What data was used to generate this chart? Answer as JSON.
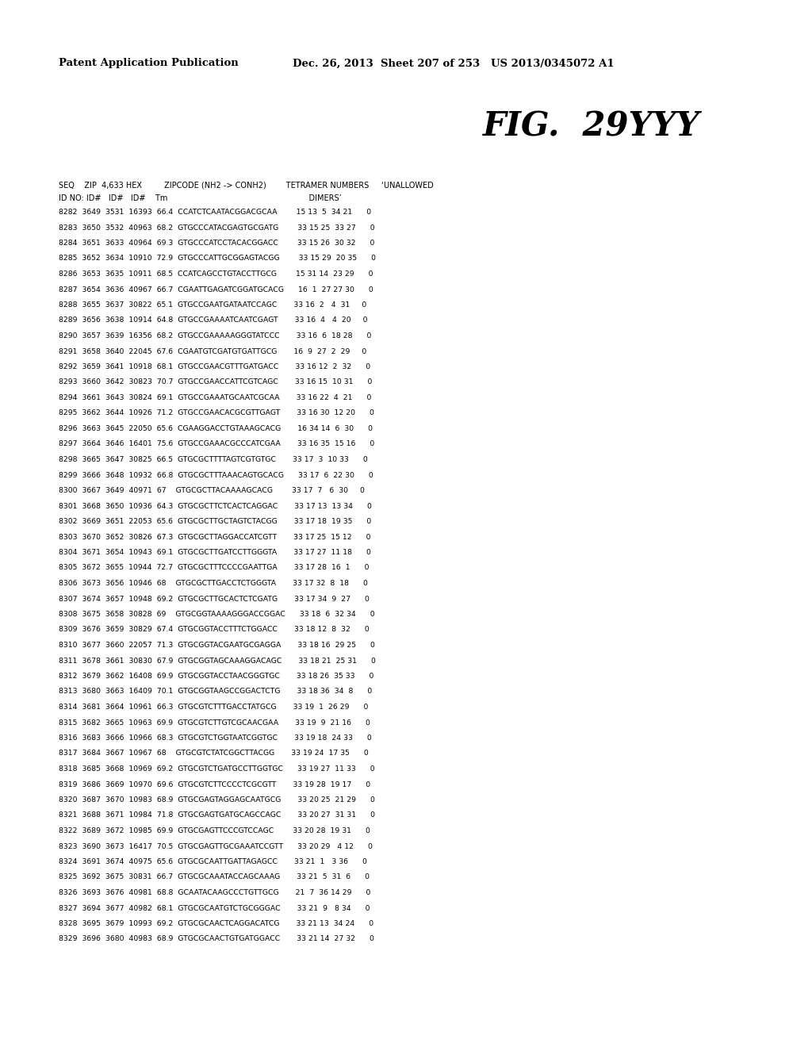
{
  "header_left": "Patent Application Publication",
  "header_right": "Dec. 26, 2013  Sheet 207 of 253   US 2013/0345072 A1",
  "fig_title": "FIG.  29YYY",
  "col_header1": "SEQ    ZIP  4,633 HEX         ZIPCODE (NH2 -> CONH2)        TETRAMER NUMBERS     ‘UNALLOWED",
  "col_header2": "ID NO: ID#   ID#   ID#    Tm                                                         DIMERS’",
  "rows": [
    "8282  3649  3531  16393  66.4  CCATCTCAATACGGACGCAA        15 13  5  34 21      0",
    "8283  3650  3532  40963  68.2  GTGCCCATACGAGTGCGATG        33 15 25  33 27      0",
    "8284  3651  3633  40964  69.3  GTGCCCATCCTACACGGACC        33 15 26  30 32      0",
    "8285  3652  3634  10910  72.9  GTGCCCATTGCGGAGTACGG        33 15 29  20 35      0",
    "8286  3653  3635  10911  68.5  CCATCAGCCTGTACCTTGCG        15 31 14  23 29      0",
    "8287  3654  3636  40967  66.7  CGAATTGAGATCGGATGCACG      16  1  27 27 30      0",
    "8288  3655  3637  30822  65.1  GTGCCGAATGATAATCCAGC       33 16  2   4  31     0",
    "8289  3656  3638  10914  64.8  GTGCCGAAAATCAATCGAGT       33 16  4   4  20     0",
    "8290  3657  3639  16356  68.2  GTGCCGAAAAAGGGTATCCC       33 16  6  18 28      0",
    "8291  3658  3640  22045  67.6  CGAATGTCGATGTGATTGCG       16  9  27  2  29     0",
    "8292  3659  3641  10918  68.1  GTGCCGAACGTTTGATGACC       33 16 12  2  32      0",
    "8293  3660  3642  30823  70.7  GTGCCGAACCATTCGTCAGC       33 16 15  10 31      0",
    "8294  3661  3643  30824  69.1  GTGCCGAAATGCAATCGCAA       33 16 22  4  21      0",
    "8295  3662  3644  10926  71.2  GTGCCGAACACGCGTTGAGT       33 16 30  12 20      0",
    "8296  3663  3645  22050  65.6  CGAAGGACCTGTAAAGCACG       16 34 14  6  30      0",
    "8297  3664  3646  16401  75.6  GTGCCGAAACGCCCATCGAA       33 16 35  15 16      0",
    "8298  3665  3647  30825  66.5  GTGCGCTTTTAGTCGTGTGC       33 17  3  10 33      0",
    "8299  3666  3648  10932  66.8  GTGCGCTTTAAACAGTGCACG      33 17  6  22 30      0",
    "8300  3667  3649  40971  67    GTGCGCTTACAAAAGCACG        33 17  7   6  30     0",
    "8301  3668  3650  10936  64.3  GTGCGCTTCTCACTCAGGAC       33 17 13  13 34      0",
    "8302  3669  3651  22053  65.6  GTGCGCTTGCTAGTCTACGG       33 17 18  19 35      0",
    "8303  3670  3652  30826  67.3  GTGCGCTTAGGACCATCGTT       33 17 25  15 12      0",
    "8304  3671  3654  10943  69.1  GTGCGCTTGATCCTTGGGTA       33 17 27  11 18      0",
    "8305  3672  3655  10944  72.7  GTGCGCTTTCCCCGAATTGA       33 17 28  16  1      0",
    "8306  3673  3656  10946  68    GTGCGCTTGACCTCTGGGTA       33 17 32  8  18      0",
    "8307  3674  3657  10948  69.2  GTGCGCTTGCACTCTCGATG       33 17 34  9  27      0",
    "8308  3675  3658  30828  69    GTGCGGTAAAAGGGACCGGAC      33 18  6  32 34      0",
    "8309  3676  3659  30829  67.4  GTGCGGTACCTTTCTGGACC       33 18 12  8  32      0",
    "8310  3677  3660  22057  71.3  GTGCGGTACGAATGCGAGGA       33 18 16  29 25      0",
    "8311  3678  3661  30830  67.9  GTGCGGTAGCAAAGGACAGC       33 18 21  25 31      0",
    "8312  3679  3662  16408  69.9  GTGCGGTACCTAACGGGTGC       33 18 26  35 33      0",
    "8313  3680  3663  16409  70.1  GTGCGGTAAGCCGGACTCTG       33 18 36  34  8      0",
    "8314  3681  3664  10961  66.3  GTGCGTCTTTGACCTATGCG       33 19  1  26 29      0",
    "8315  3682  3665  10963  69.9  GTGCGTCTTGTCGCAACGAA       33 19  9  21 16      0",
    "8316  3683  3666  10966  68.3  GTGCGTCTGGTAATCGGTGC       33 19 18  24 33      0",
    "8317  3684  3667  10967  68    GTGCGTCTATCGGCTTACGG       33 19 24  17 35      0",
    "8318  3685  3668  10969  69.2  GTGCGTCTGATGCCTTGGTGC      33 19 27  11 33      0",
    "8319  3686  3669  10970  69.6  GTGCGTCTTCCCCTCGCGTT       33 19 28  19 17      0",
    "8320  3687  3670  10983  68.9  GTGCGAGTAGGAGCAATGCG       33 20 25  21 29      0",
    "8321  3688  3671  10984  71.8  GTGCGAGTGATGCAGCCAGC       33 20 27  31 31      0",
    "8322  3689  3672  10985  69.9  GTGCGAGTTCCCGTCCAGC        33 20 28  19 31      0",
    "8323  3690  3673  16417  70.5  GTGCGAGTTGCGAAATCCGTT      33 20 29   4 12      0",
    "8324  3691  3674  40975  65.6  GTGCGCAATTGATTAGAGCC       33 21  1   3 36      0",
    "8325  3692  3675  30831  66.7  GTGCGCAAATACCAGCAAAG       33 21  5  31  6      0",
    "8326  3693  3676  40981  68.8  GCAATACAAGCCCTGTTGCG       21  7  36 14 29      0",
    "8327  3694  3677  40982  68.1  GTGCGCAATGTCTGCGGGAC       33 21  9   8 34      0",
    "8328  3695  3679  10993  69.2  GTGCGCAACTCAGGACATCG       33 21 13  34 24      0",
    "8329  3696  3680  40983  68.9  GTGCGCAACTGTGATGGACC       33 21 14  27 32      0"
  ],
  "background_color": "#ffffff",
  "text_color": "#000000"
}
